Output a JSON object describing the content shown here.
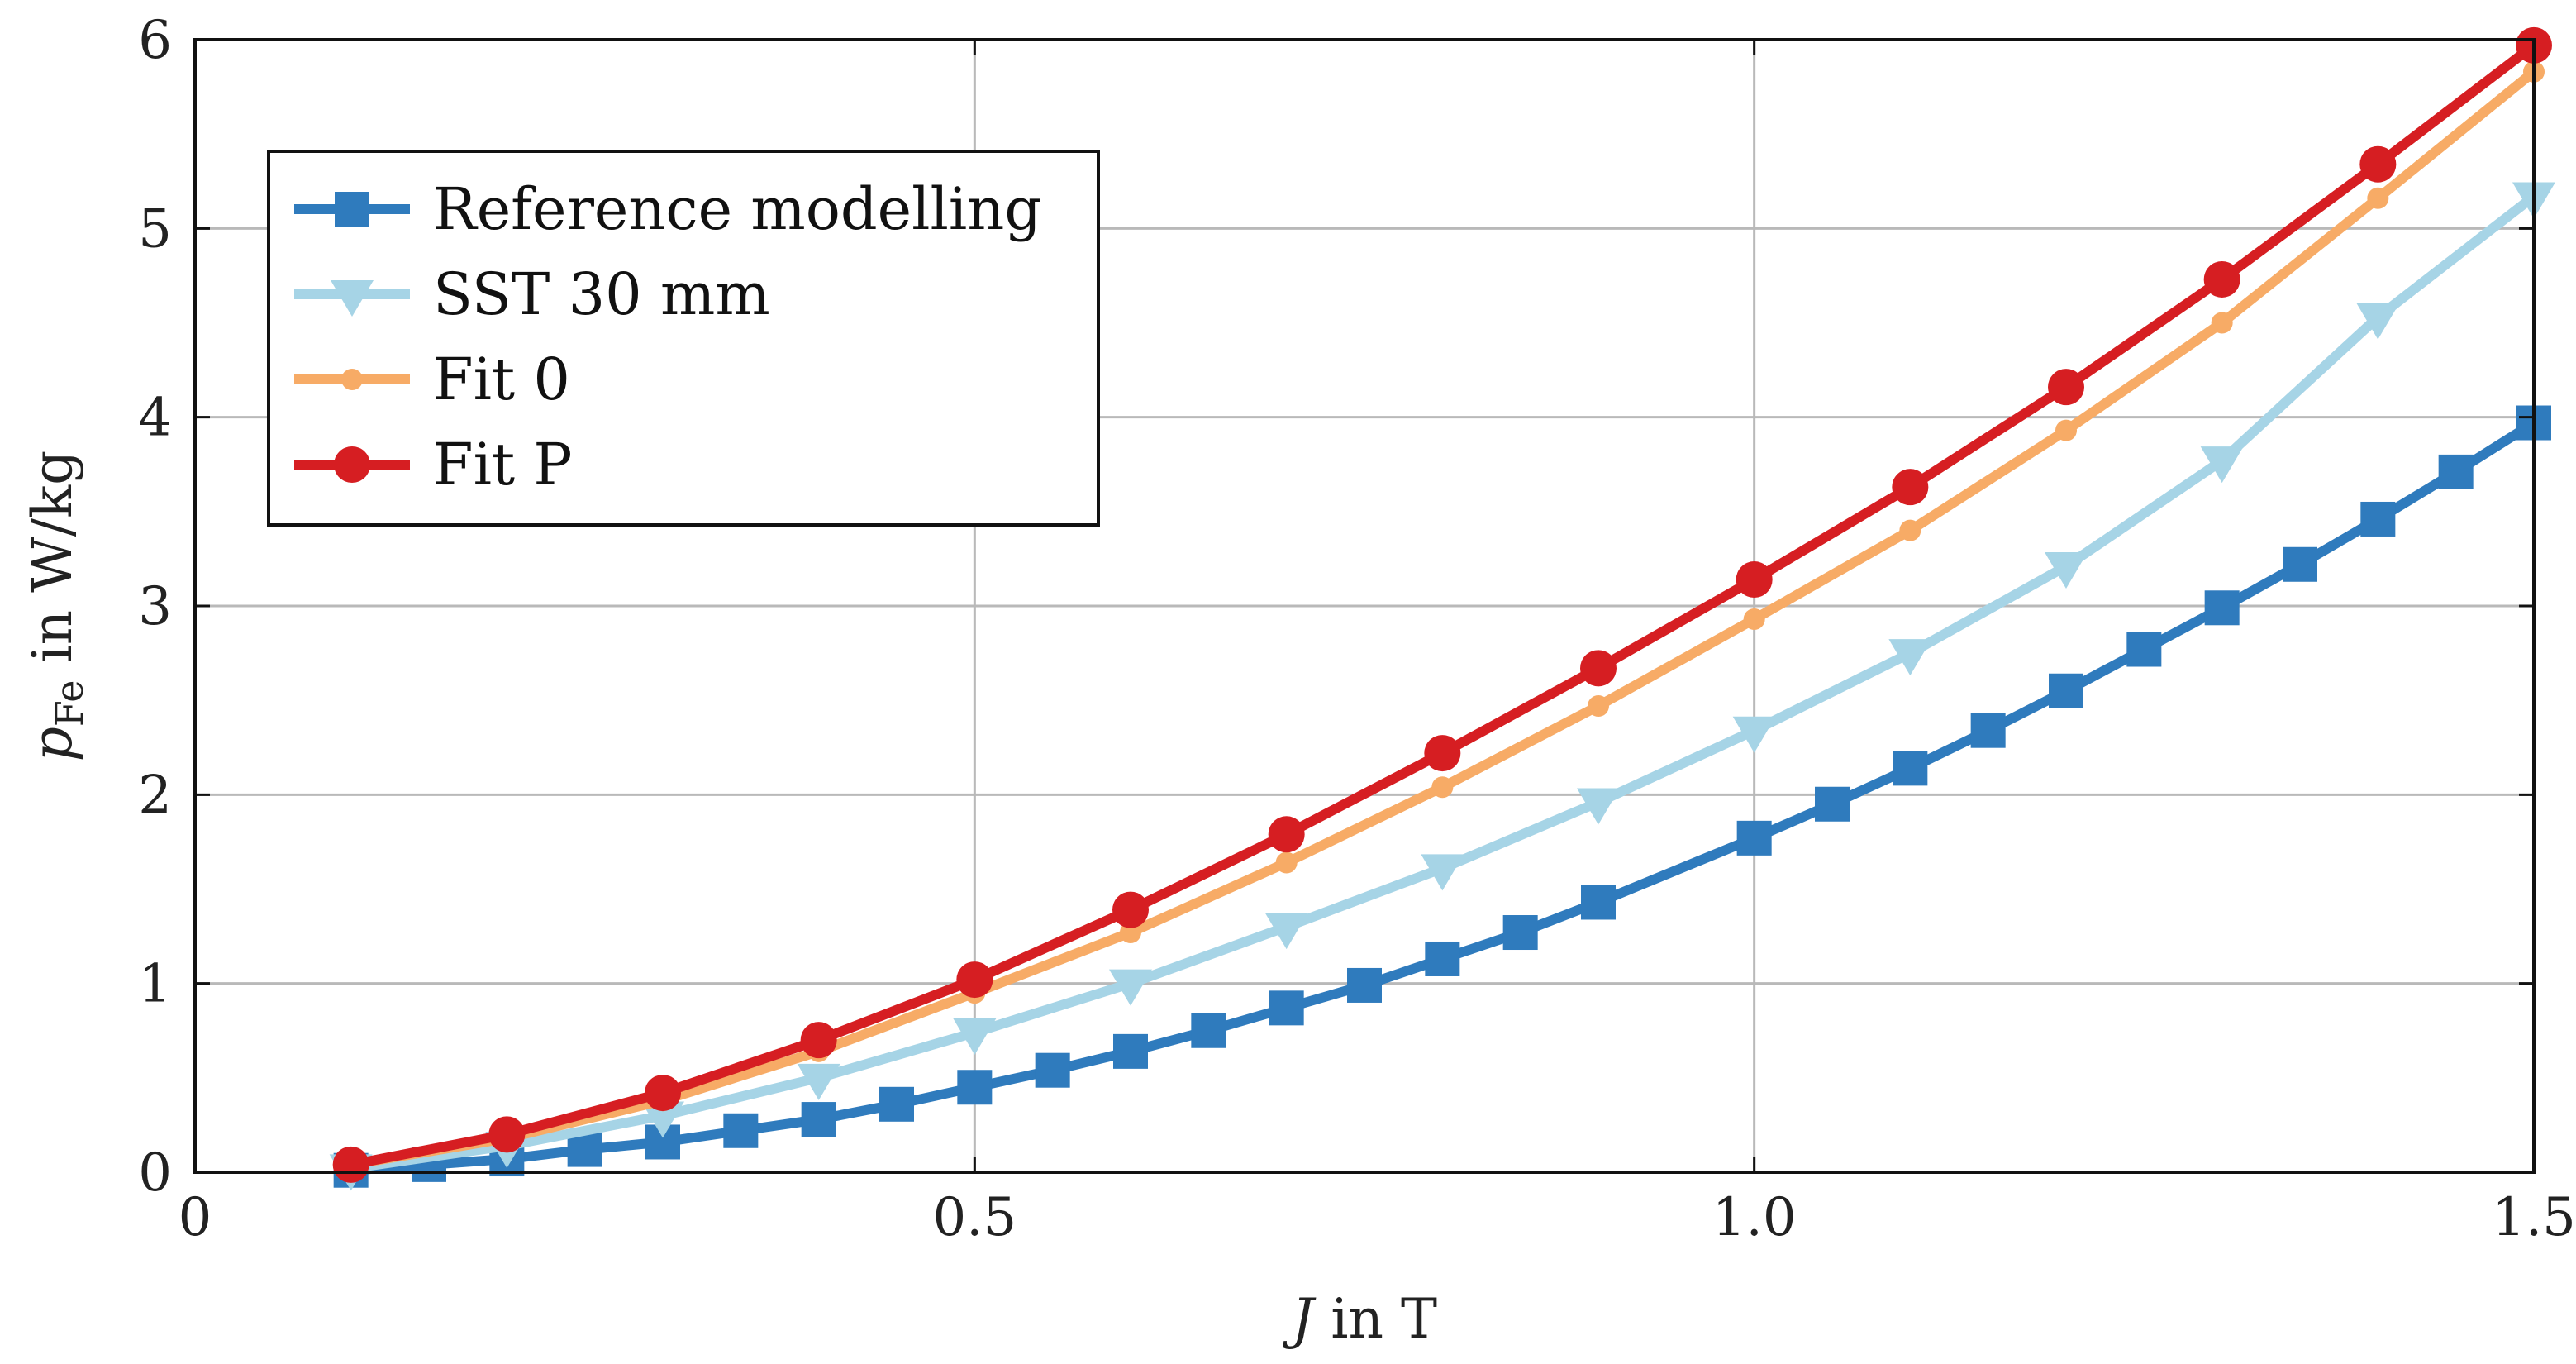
{
  "chart_data": {
    "type": "line",
    "title": "",
    "xlabel": {
      "var": "J",
      "rest": " in T"
    },
    "ylabel": {
      "var": "p",
      "sub": "Fe",
      "rest": " in W/kg"
    },
    "xlim": [
      0,
      1.5
    ],
    "ylim": [
      0,
      6
    ],
    "x_ticks": [
      0,
      0.5,
      1.0,
      1.5
    ],
    "x_tick_labels": [
      "0",
      "0.5",
      "1.0",
      "1.5"
    ],
    "y_ticks": [
      0,
      1,
      2,
      3,
      4,
      5,
      6
    ],
    "y_tick_labels": [
      "0",
      "1",
      "2",
      "3",
      "4",
      "5",
      "6"
    ],
    "grid": true,
    "legend_position": "top-left",
    "series": [
      {
        "name": "Reference modelling",
        "color": "#2f7bbd",
        "marker": "square",
        "x": [
          0.1,
          0.15,
          0.2,
          0.25,
          0.3,
          0.35,
          0.4,
          0.45,
          0.5,
          0.55,
          0.6,
          0.65,
          0.7,
          0.75,
          0.8,
          0.85,
          0.9,
          1.0,
          1.05,
          1.1,
          1.15,
          1.2,
          1.25,
          1.3,
          1.35,
          1.4,
          1.45,
          1.5
        ],
        "y": [
          0.01,
          0.04,
          0.07,
          0.12,
          0.16,
          0.22,
          0.28,
          0.36,
          0.45,
          0.54,
          0.64,
          0.75,
          0.87,
          0.99,
          1.13,
          1.27,
          1.43,
          1.77,
          1.95,
          2.14,
          2.34,
          2.55,
          2.77,
          2.99,
          3.22,
          3.46,
          3.71,
          3.97
        ]
      },
      {
        "name": "SST 30 mm",
        "color": "#a6d4e6",
        "marker": "triangle-down",
        "x": [
          0.1,
          0.2,
          0.3,
          0.4,
          0.5,
          0.6,
          0.7,
          0.8,
          0.9,
          1.0,
          1.1,
          1.2,
          1.3,
          1.4,
          1.5
        ],
        "y": [
          0.02,
          0.14,
          0.3,
          0.5,
          0.74,
          1.0,
          1.3,
          1.61,
          1.96,
          2.34,
          2.75,
          3.21,
          3.77,
          4.53,
          5.17
        ]
      },
      {
        "name": "Fit 0",
        "color": "#f7ab66",
        "marker": "dot",
        "x": [
          0.1,
          0.2,
          0.3,
          0.4,
          0.5,
          0.6,
          0.7,
          0.8,
          0.9,
          1.0,
          1.1,
          1.2,
          1.3,
          1.4,
          1.5
        ],
        "y": [
          0.04,
          0.18,
          0.38,
          0.64,
          0.95,
          1.27,
          1.64,
          2.04,
          2.47,
          2.93,
          3.4,
          3.93,
          4.5,
          5.16,
          5.83
        ]
      },
      {
        "name": "Fit P",
        "color": "#d61e22",
        "marker": "circle",
        "x": [
          0.1,
          0.2,
          0.3,
          0.4,
          0.5,
          0.6,
          0.7,
          0.8,
          0.9,
          1.0,
          1.1,
          1.2,
          1.3,
          1.4,
          1.5
        ],
        "y": [
          0.04,
          0.2,
          0.42,
          0.7,
          1.02,
          1.39,
          1.79,
          2.22,
          2.67,
          3.14,
          3.63,
          4.16,
          4.73,
          5.34,
          5.97
        ]
      }
    ]
  }
}
